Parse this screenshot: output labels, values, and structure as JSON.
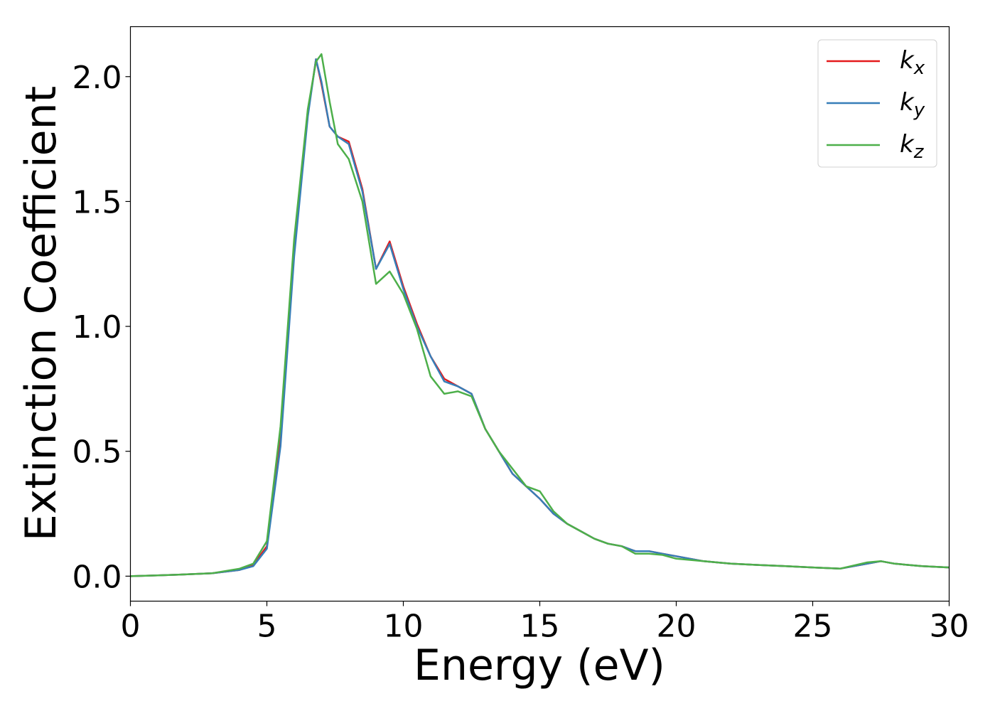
{
  "chart_data": {
    "type": "line",
    "title": "",
    "xlabel": "Energy (eV)",
    "ylabel": "Extinction Coefficient",
    "xlim": [
      0,
      30
    ],
    "ylim": [
      -0.1,
      2.2
    ],
    "xticks": [
      0,
      5,
      10,
      15,
      20,
      25,
      30
    ],
    "xtick_labels": [
      "0",
      "5",
      "10",
      "15",
      "20",
      "25",
      "30"
    ],
    "yticks": [
      0.0,
      0.5,
      1.0,
      1.5,
      2.0
    ],
    "ytick_labels": [
      "0.0",
      "0.5",
      "1.0",
      "1.5",
      "2.0"
    ],
    "grid": false,
    "legend_position": "top-right",
    "series": [
      {
        "name": "k",
        "sub": "x",
        "color": "#e41a1c",
        "x": [
          0,
          1,
          2,
          3,
          4,
          4.5,
          5,
          5.5,
          6,
          6.5,
          6.8,
          7,
          7.3,
          7.6,
          8,
          8.5,
          9,
          9.5,
          10,
          10.5,
          11,
          11.5,
          12,
          12.5,
          13,
          13.5,
          14,
          14.5,
          15,
          15.5,
          16,
          16.5,
          17,
          17.5,
          18,
          18.5,
          19,
          19.5,
          20,
          21,
          22,
          23,
          24,
          25,
          26,
          27,
          27.5,
          28,
          29,
          30
        ],
        "y": [
          0,
          0.003,
          0.007,
          0.012,
          0.025,
          0.045,
          0.12,
          0.55,
          1.3,
          1.85,
          2.07,
          1.97,
          1.8,
          1.76,
          1.74,
          1.55,
          1.23,
          1.34,
          1.16,
          1.01,
          0.88,
          0.79,
          0.76,
          0.73,
          0.59,
          0.5,
          0.41,
          0.36,
          0.31,
          0.25,
          0.21,
          0.18,
          0.15,
          0.13,
          0.12,
          0.1,
          0.1,
          0.09,
          0.08,
          0.06,
          0.05,
          0.045,
          0.04,
          0.035,
          0.03,
          0.05,
          0.06,
          0.05,
          0.04,
          0.035
        ]
      },
      {
        "name": "k",
        "sub": "y",
        "color": "#377eb8",
        "x": [
          0,
          1,
          2,
          3,
          4,
          4.5,
          5,
          5.5,
          6,
          6.5,
          6.8,
          7,
          7.3,
          7.6,
          8,
          8.5,
          9,
          9.5,
          10,
          10.5,
          11,
          11.5,
          12,
          12.5,
          13,
          13.5,
          14,
          14.5,
          15,
          15.5,
          16,
          16.5,
          17,
          17.5,
          18,
          18.5,
          19,
          19.5,
          20,
          21,
          22,
          23,
          24,
          25,
          26,
          27,
          27.5,
          28,
          29,
          30
        ],
        "y": [
          0,
          0.003,
          0.007,
          0.012,
          0.025,
          0.04,
          0.11,
          0.52,
          1.28,
          1.84,
          2.07,
          1.98,
          1.8,
          1.76,
          1.73,
          1.54,
          1.23,
          1.33,
          1.15,
          1.0,
          0.88,
          0.78,
          0.76,
          0.73,
          0.59,
          0.5,
          0.41,
          0.36,
          0.31,
          0.25,
          0.21,
          0.18,
          0.15,
          0.13,
          0.12,
          0.1,
          0.1,
          0.09,
          0.08,
          0.06,
          0.05,
          0.045,
          0.04,
          0.035,
          0.03,
          0.05,
          0.06,
          0.05,
          0.04,
          0.035
        ]
      },
      {
        "name": "k",
        "sub": "z",
        "color": "#4daf4a",
        "x": [
          0,
          1,
          2,
          3,
          4,
          4.5,
          5,
          5.5,
          6,
          6.5,
          6.8,
          7,
          7.3,
          7.6,
          8,
          8.5,
          9,
          9.5,
          10,
          10.5,
          11,
          11.5,
          12,
          12.5,
          13,
          13.5,
          14,
          14.5,
          15,
          15.5,
          16,
          16.5,
          17,
          17.5,
          18,
          18.5,
          19,
          19.5,
          20,
          21,
          22,
          23,
          24,
          25,
          26,
          27,
          27.5,
          28,
          29,
          30
        ],
        "y": [
          0,
          0.003,
          0.007,
          0.012,
          0.03,
          0.05,
          0.14,
          0.6,
          1.35,
          1.87,
          2.06,
          2.09,
          1.9,
          1.73,
          1.67,
          1.5,
          1.17,
          1.22,
          1.13,
          0.99,
          0.8,
          0.73,
          0.74,
          0.72,
          0.59,
          0.5,
          0.43,
          0.36,
          0.34,
          0.26,
          0.21,
          0.18,
          0.15,
          0.13,
          0.12,
          0.09,
          0.09,
          0.085,
          0.07,
          0.06,
          0.05,
          0.045,
          0.04,
          0.035,
          0.03,
          0.055,
          0.06,
          0.05,
          0.04,
          0.035
        ]
      }
    ]
  }
}
